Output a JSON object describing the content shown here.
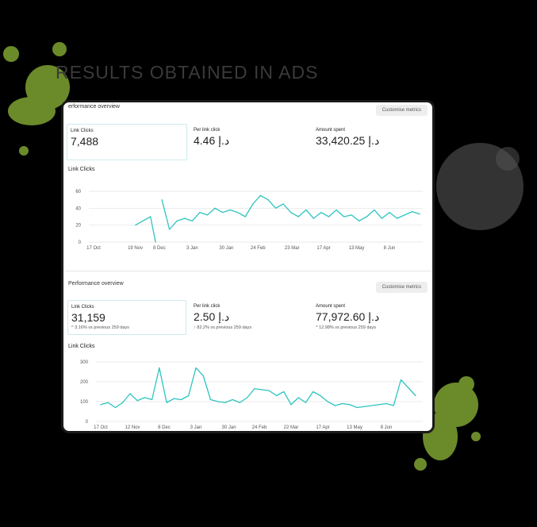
{
  "heading": "RESULTS OBTAINED IN ADS",
  "colors": {
    "line": "#2ec4c0",
    "splat": "#6b8a2a",
    "grid": "#e2e2e2"
  },
  "panels": [
    {
      "title": "erformance overview",
      "customise": "Customise metrics",
      "metrics": [
        {
          "label": "Link Clicks",
          "value": "7,488",
          "selected": true
        },
        {
          "label": "Per link click",
          "value": "4.46 د.إ"
        },
        {
          "label": "Amount spent",
          "value": "33,420.25 د.إ"
        }
      ],
      "chart_label": "Link Clicks"
    },
    {
      "title": "Performance overview",
      "customise": "Customise metrics",
      "metrics": [
        {
          "label": "Link Clicks",
          "value": "31,159",
          "compare": "^ 3.16% vs previous 259 days",
          "selected": true
        },
        {
          "label": "Per link click",
          "value": "2.50 د.إ",
          "compare": "↑ 82.2% vs previous 259 days"
        },
        {
          "label": "Amount spent",
          "value": "77,972.60 د.إ",
          "compare": "^ 12.98% vs previous 259 days"
        }
      ],
      "chart_label": "Link Clicks"
    }
  ],
  "chart_data": [
    {
      "type": "line",
      "title": "Link Clicks",
      "ylim": [
        0,
        60
      ],
      "yticks": [
        "0",
        "20",
        "40",
        "60"
      ],
      "xticks": [
        "17 Oct",
        "19 Nov",
        "8 Dec",
        "3 Jan",
        "30 Jan",
        "24 Feb",
        "23 Mar",
        "17 Apr",
        "13 May",
        "8 Jun"
      ],
      "grid": true,
      "points": [
        [
          "19 Nov",
          20
        ],
        [
          "25 Nov",
          25
        ],
        [
          "1 Dec",
          30
        ],
        [
          "5 Dec",
          0
        ],
        [
          "7 Dec",
          null
        ],
        [
          "10 Dec",
          50
        ],
        [
          "16 Dec",
          15
        ],
        [
          "22 Dec",
          25
        ],
        [
          "28 Dec",
          28
        ],
        [
          "3 Jan",
          25
        ],
        [
          "9 Jan",
          35
        ],
        [
          "15 Jan",
          32
        ],
        [
          "21 Jan",
          40
        ],
        [
          "27 Jan",
          35
        ],
        [
          "2 Feb",
          38
        ],
        [
          "8 Feb",
          35
        ],
        [
          "14 Feb",
          30
        ],
        [
          "20 Feb",
          45
        ],
        [
          "26 Feb",
          55
        ],
        [
          "4 Mar",
          50
        ],
        [
          "10 Mar",
          40
        ],
        [
          "16 Mar",
          45
        ],
        [
          "22 Mar",
          35
        ],
        [
          "28 Mar",
          30
        ],
        [
          "3 Apr",
          38
        ],
        [
          "9 Apr",
          28
        ],
        [
          "15 Apr",
          35
        ],
        [
          "21 Apr",
          30
        ],
        [
          "27 Apr",
          38
        ],
        [
          "3 May",
          30
        ],
        [
          "9 May",
          32
        ],
        [
          "15 May",
          25
        ],
        [
          "21 May",
          30
        ],
        [
          "27 May",
          38
        ],
        [
          "2 Jun",
          28
        ],
        [
          "8 Jun",
          35
        ],
        [
          "14 Jun",
          28
        ],
        [
          "20 Jun",
          32
        ],
        [
          "26 Jun",
          36
        ],
        [
          "2 Jul",
          33
        ]
      ]
    },
    {
      "type": "line",
      "title": "Link Clicks",
      "ylim": [
        0,
        300
      ],
      "yticks": [
        "0",
        "100",
        "200",
        "300"
      ],
      "xticks": [
        "17 Oct",
        "12 Nov",
        "8 Dec",
        "3 Jan",
        "30 Jan",
        "24 Feb",
        "22 Mar",
        "17 Apr",
        "13 May",
        "8 Jun"
      ],
      "grid": true,
      "points": [
        [
          "17 Oct",
          85
        ],
        [
          "23 Oct",
          95
        ],
        [
          "29 Oct",
          70
        ],
        [
          "4 Nov",
          95
        ],
        [
          "10 Nov",
          140
        ],
        [
          "16 Nov",
          105
        ],
        [
          "22 Nov",
          120
        ],
        [
          "28 Nov",
          110
        ],
        [
          "4 Dec",
          270
        ],
        [
          "10 Dec",
          95
        ],
        [
          "16 Dec",
          115
        ],
        [
          "22 Dec",
          110
        ],
        [
          "28 Dec",
          130
        ],
        [
          "3 Jan",
          270
        ],
        [
          "9 Jan",
          230
        ],
        [
          "15 Jan",
          110
        ],
        [
          "21 Jan",
          100
        ],
        [
          "27 Jan",
          95
        ],
        [
          "2 Feb",
          110
        ],
        [
          "8 Feb",
          95
        ],
        [
          "14 Feb",
          120
        ],
        [
          "20 Feb",
          165
        ],
        [
          "26 Feb",
          160
        ],
        [
          "4 Mar",
          155
        ],
        [
          "10 Mar",
          130
        ],
        [
          "16 Mar",
          150
        ],
        [
          "22 Mar",
          85
        ],
        [
          "28 Mar",
          120
        ],
        [
          "3 Apr",
          95
        ],
        [
          "9 Apr",
          150
        ],
        [
          "15 Apr",
          130
        ],
        [
          "21 Apr",
          100
        ],
        [
          "27 Apr",
          80
        ],
        [
          "3 May",
          90
        ],
        [
          "9 May",
          85
        ],
        [
          "15 May",
          70
        ],
        [
          "21 May",
          75
        ],
        [
          "27 May",
          80
        ],
        [
          "2 Jun",
          85
        ],
        [
          "8 Jun",
          90
        ],
        [
          "14 Jun",
          80
        ],
        [
          "20 Jun",
          210
        ],
        [
          "26 Jun",
          170
        ],
        [
          "2 Jul",
          130
        ]
      ]
    }
  ]
}
